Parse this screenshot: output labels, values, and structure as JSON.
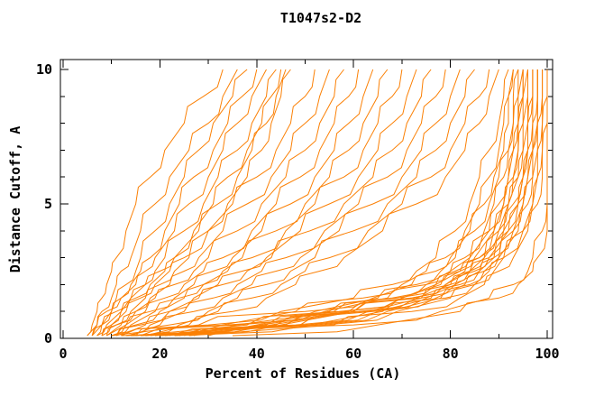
{
  "title": "T1047s2-D2",
  "chart_data": {
    "type": "line",
    "title": "T1047s2-D2",
    "xlabel": "Percent of Residues (CA)",
    "ylabel": "Distance Cutoff, A",
    "xlim": [
      0,
      100
    ],
    "ylim": [
      0,
      10
    ],
    "grid": false,
    "legend": "none",
    "frame": "box-with-inward-mirrored-ticks",
    "curve_color": "#fb8005",
    "axis_color": "#000000",
    "x_major_ticks": [
      0,
      20,
      40,
      60,
      80,
      100
    ],
    "x_minor_ticks": [
      10,
      30,
      50,
      70,
      90
    ],
    "y_major_ticks": [
      0,
      5,
      10
    ],
    "y_minor_ticks": [
      1,
      2,
      3,
      4,
      6,
      7,
      8,
      9
    ],
    "x_tick_labels": [
      "0",
      "20",
      "40",
      "60",
      "80",
      "100"
    ],
    "y_tick_labels": [
      "0",
      "5",
      "10"
    ],
    "cutoffs": [
      0.1,
      0.5,
      1,
      1.5,
      2,
      2.5,
      3,
      4,
      5,
      6,
      7,
      8,
      9,
      10
    ],
    "curves": [
      [
        5,
        6,
        7,
        8,
        9,
        10,
        11,
        13,
        15,
        18,
        21,
        25,
        29,
        33
      ],
      [
        6,
        7,
        8,
        10,
        11,
        12,
        14,
        16,
        19,
        22,
        26,
        30,
        33,
        36
      ],
      [
        6,
        8,
        10,
        11,
        13,
        15,
        16,
        19,
        22,
        25,
        28,
        31,
        35,
        38
      ],
      [
        7,
        8,
        10,
        12,
        14,
        16,
        18,
        21,
        24,
        27,
        31,
        34,
        37,
        40
      ],
      [
        5,
        7,
        9,
        12,
        15,
        17,
        19,
        23,
        26,
        30,
        33,
        36,
        39,
        42
      ],
      [
        8,
        10,
        12,
        14,
        17,
        19,
        21,
        25,
        29,
        32,
        36,
        39,
        42,
        44
      ],
      [
        7,
        9,
        12,
        15,
        18,
        21,
        23,
        27,
        31,
        34,
        38,
        41,
        43,
        45
      ],
      [
        6,
        8,
        11,
        14,
        17,
        20,
        23,
        28,
        32,
        36,
        39,
        42,
        44,
        46
      ],
      [
        9,
        11,
        14,
        17,
        20,
        23,
        26,
        30,
        34,
        38,
        41,
        43,
        45,
        47
      ],
      [
        8,
        10,
        13,
        16,
        19,
        22,
        25,
        30,
        35,
        40,
        44,
        47,
        50,
        52
      ],
      [
        9,
        12,
        15,
        18,
        22,
        25,
        28,
        33,
        38,
        43,
        47,
        50,
        53,
        55
      ],
      [
        8,
        11,
        15,
        19,
        23,
        27,
        30,
        36,
        41,
        46,
        50,
        53,
        56,
        58
      ],
      [
        10,
        13,
        17,
        21,
        25,
        29,
        33,
        39,
        44,
        49,
        53,
        56,
        59,
        61
      ],
      [
        9,
        13,
        18,
        23,
        27,
        31,
        35,
        41,
        47,
        52,
        56,
        59,
        62,
        64
      ],
      [
        11,
        15,
        20,
        25,
        29,
        33,
        37,
        44,
        50,
        55,
        59,
        62,
        65,
        67
      ],
      [
        10,
        14,
        19,
        24,
        29,
        34,
        39,
        46,
        52,
        58,
        62,
        65,
        68,
        70
      ],
      [
        12,
        17,
        22,
        27,
        32,
        37,
        42,
        49,
        55,
        61,
        65,
        68,
        71,
        73
      ],
      [
        11,
        16,
        22,
        28,
        33,
        38,
        43,
        51,
        58,
        64,
        68,
        71,
        74,
        76
      ],
      [
        13,
        18,
        25,
        31,
        36,
        41,
        46,
        54,
        61,
        67,
        71,
        74,
        77,
        79
      ],
      [
        14,
        20,
        27,
        33,
        39,
        44,
        49,
        57,
        64,
        70,
        74,
        77,
        80,
        82
      ],
      [
        15,
        22,
        30,
        36,
        42,
        47,
        52,
        60,
        67,
        73,
        77,
        80,
        83,
        85
      ],
      [
        16,
        24,
        32,
        39,
        45,
        50,
        55,
        63,
        70,
        76,
        80,
        83,
        86,
        88
      ],
      [
        17,
        26,
        35,
        42,
        48,
        53,
        58,
        66,
        73,
        79,
        83,
        86,
        88,
        90
      ],
      [
        12,
        30,
        45,
        60,
        68,
        73,
        77,
        81,
        84,
        86,
        88,
        90,
        91,
        92
      ],
      [
        14,
        33,
        48,
        62,
        70,
        75,
        79,
        83,
        86,
        88,
        90,
        91,
        92,
        93
      ],
      [
        10,
        28,
        50,
        64,
        72,
        77,
        80,
        84,
        87,
        89,
        91,
        92,
        92,
        93
      ],
      [
        16,
        36,
        52,
        65,
        73,
        78,
        81,
        85,
        88,
        90,
        92,
        93,
        93,
        94
      ],
      [
        13,
        40,
        55,
        68,
        75,
        80,
        83,
        87,
        89,
        91,
        92,
        93,
        94,
        94
      ],
      [
        18,
        42,
        58,
        70,
        77,
        81,
        84,
        88,
        90,
        92,
        93,
        94,
        94,
        95
      ],
      [
        11,
        34,
        54,
        67,
        75,
        80,
        84,
        88,
        91,
        92,
        93,
        94,
        95,
        95
      ],
      [
        20,
        45,
        60,
        72,
        79,
        83,
        86,
        89,
        91,
        93,
        94,
        94,
        95,
        95
      ],
      [
        15,
        38,
        57,
        70,
        78,
        82,
        85,
        89,
        92,
        93,
        94,
        95,
        95,
        96
      ],
      [
        22,
        48,
        63,
        74,
        80,
        84,
        87,
        90,
        92,
        94,
        95,
        95,
        96,
        96
      ],
      [
        12,
        36,
        56,
        69,
        77,
        82,
        86,
        90,
        92,
        94,
        95,
        96,
        96,
        96
      ],
      [
        17,
        44,
        61,
        73,
        80,
        84,
        87,
        91,
        93,
        95,
        96,
        96,
        97,
        97
      ],
      [
        24,
        50,
        65,
        76,
        82,
        86,
        89,
        92,
        94,
        95,
        96,
        97,
        97,
        97
      ],
      [
        14,
        41,
        59,
        72,
        79,
        84,
        88,
        91,
        94,
        95,
        96,
        96,
        97,
        97
      ],
      [
        19,
        46,
        62,
        75,
        81,
        85,
        88,
        92,
        94,
        96,
        97,
        97,
        98,
        98
      ],
      [
        25,
        52,
        67,
        78,
        84,
        87,
        90,
        93,
        95,
        96,
        97,
        98,
        98,
        98
      ],
      [
        16,
        43,
        60,
        74,
        81,
        86,
        89,
        93,
        95,
        97,
        97,
        98,
        98,
        98
      ],
      [
        21,
        49,
        64,
        77,
        83,
        87,
        90,
        94,
        96,
        97,
        98,
        98,
        99,
        99
      ],
      [
        27,
        54,
        69,
        80,
        85,
        89,
        91,
        95,
        97,
        98,
        98,
        99,
        99,
        99
      ],
      [
        23,
        51,
        66,
        79,
        85,
        88,
        91,
        95,
        97,
        98,
        99,
        99,
        100,
        100
      ],
      [
        26,
        56,
        72,
        82,
        87,
        90,
        93,
        96,
        98,
        99,
        99,
        100,
        100,
        100
      ],
      [
        30,
        60,
        78,
        88,
        93,
        96,
        97,
        99,
        100,
        100,
        100,
        100,
        100,
        100
      ],
      [
        35,
        65,
        82,
        90,
        94,
        97,
        98,
        100,
        100,
        100,
        100,
        100,
        100,
        100
      ]
    ]
  }
}
